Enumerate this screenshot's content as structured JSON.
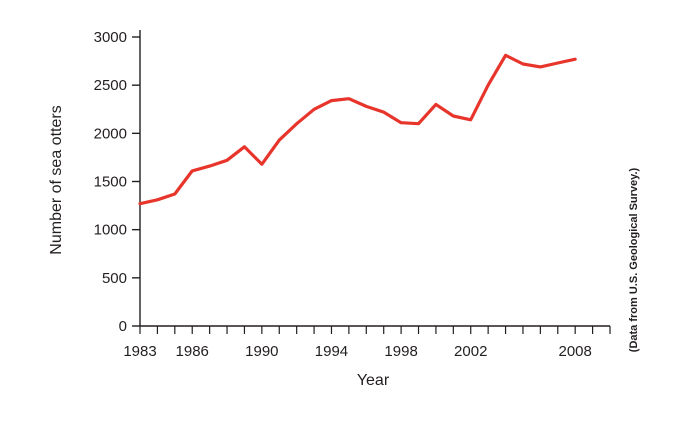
{
  "chart_data": {
    "type": "line",
    "xlabel": "Year",
    "ylabel": "Number of sea otters",
    "source_note": "(Data from U.S. Geological Survey.)",
    "xlim": [
      1983,
      2010
    ],
    "ylim": [
      0,
      3000
    ],
    "x_tick_labels": [
      1983,
      1986,
      1990,
      1994,
      1998,
      2002,
      2008
    ],
    "y_tick_labels": [
      0,
      500,
      1000,
      1500,
      2000,
      2500,
      3000
    ],
    "grid": false,
    "line_color": "#e8352b",
    "series": [
      {
        "x": [
          1983,
          1984,
          1985,
          1986,
          1987,
          1988,
          1989,
          1990,
          1991,
          1992,
          1993,
          1994,
          1995,
          1996,
          1997,
          1998,
          1999,
          2000,
          2001,
          2002,
          2003,
          2004,
          2005,
          2006,
          2007,
          2008
        ],
        "y": [
          1270,
          1310,
          1370,
          1610,
          1660,
          1720,
          1860,
          1680,
          1930,
          2100,
          2250,
          2340,
          2360,
          2280,
          2220,
          2110,
          2100,
          2300,
          2180,
          2140,
          2500,
          2810,
          2720,
          2690,
          2730,
          2770
        ]
      }
    ]
  }
}
